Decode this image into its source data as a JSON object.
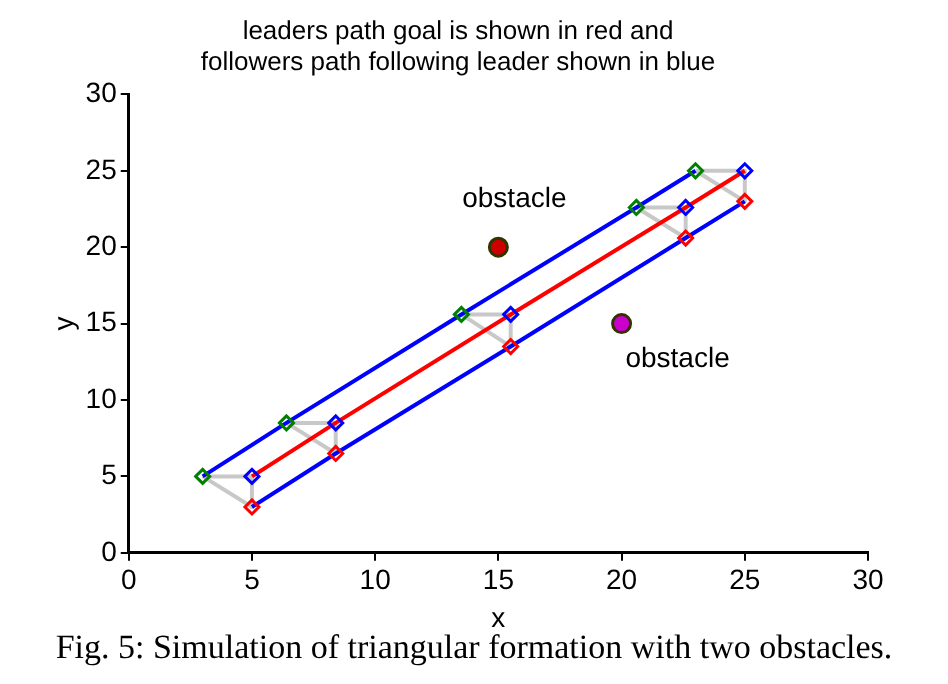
{
  "chart_data": {
    "type": "line",
    "title": "leaders path goal is shown in red and\nfollowers path following leader shown in blue",
    "xlabel": "x",
    "ylabel": "y",
    "xlim": [
      0,
      30
    ],
    "ylim": [
      0,
      30
    ],
    "xticks": [
      0,
      5,
      10,
      15,
      20,
      25,
      30
    ],
    "yticks": [
      0,
      5,
      10,
      15,
      20,
      25,
      30
    ],
    "grid": false,
    "legend": false,
    "series": [
      {
        "type": "line",
        "color": "#0000ff",
        "marker": "none",
        "x": [
          3,
          6.4,
          13.5,
          20.6,
          23
        ],
        "values": [
          5,
          8.5,
          15.6,
          22.6,
          25
        ]
      },
      {
        "type": "line",
        "color": "#ff0000",
        "marker": "none",
        "x": [
          5,
          8.4,
          15.5,
          22.6,
          25
        ],
        "values": [
          5,
          8.5,
          15.6,
          22.6,
          25
        ]
      },
      {
        "type": "line",
        "color": "#0000ff",
        "marker": "none",
        "x": [
          5,
          8.4,
          15.5,
          22.6,
          25
        ],
        "values": [
          3,
          6.5,
          13.5,
          20.6,
          23
        ]
      },
      {
        "type": "line",
        "color": "#c8c8c8",
        "marker": "none",
        "x": [
          3,
          5,
          null,
          6.4,
          8.4,
          null,
          13.5,
          15.5,
          null,
          20.6,
          22.6,
          null,
          23,
          25
        ],
        "values": [
          5,
          5,
          null,
          8.5,
          8.5,
          null,
          15.6,
          15.6,
          null,
          22.6,
          22.6,
          null,
          25,
          25
        ]
      },
      {
        "type": "line",
        "color": "#c8c8c8",
        "marker": "none",
        "x": [
          5,
          5,
          null,
          8.4,
          8.4,
          null,
          15.5,
          15.5,
          null,
          22.6,
          22.6,
          null,
          25,
          25
        ],
        "values": [
          5,
          3,
          null,
          8.5,
          6.5,
          null,
          15.6,
          13.5,
          null,
          22.6,
          20.6,
          null,
          25,
          23
        ]
      },
      {
        "type": "line",
        "color": "#c8c8c8",
        "marker": "none",
        "x": [
          3,
          5,
          null,
          6.4,
          8.4,
          null,
          13.5,
          15.5,
          null,
          20.6,
          22.6,
          null,
          23,
          25
        ],
        "values": [
          5,
          3,
          null,
          8.5,
          6.5,
          null,
          15.6,
          13.5,
          null,
          22.6,
          20.6,
          null,
          25,
          23
        ]
      },
      {
        "type": "scatter",
        "color": "#008000",
        "marker": "diamond",
        "x": [
          3,
          6.4,
          13.5,
          20.6,
          23
        ],
        "values": [
          5,
          8.5,
          15.6,
          22.6,
          25
        ]
      },
      {
        "type": "scatter",
        "color": "#0000ff",
        "marker": "diamond",
        "x": [
          5,
          8.4,
          15.5,
          22.6,
          25
        ],
        "values": [
          5,
          8.5,
          15.6,
          22.6,
          25
        ]
      },
      {
        "type": "scatter",
        "color": "#ff0000",
        "marker": "diamond",
        "x": [
          5,
          8.4,
          15.5,
          22.6,
          25
        ],
        "values": [
          3,
          6.5,
          13.5,
          20.6,
          23
        ]
      },
      {
        "type": "scatter",
        "name": "obstacle",
        "color": "#cc0000",
        "marker": "circle",
        "x": [
          15
        ],
        "values": [
          20
        ]
      },
      {
        "type": "scatter",
        "name": "obstacle",
        "color": "#cc00cc",
        "marker": "circle",
        "x": [
          20
        ],
        "values": [
          15
        ]
      }
    ],
    "annotations": [
      "Fig. 5: Simulation of triangular formation with two obstacles."
    ]
  }
}
